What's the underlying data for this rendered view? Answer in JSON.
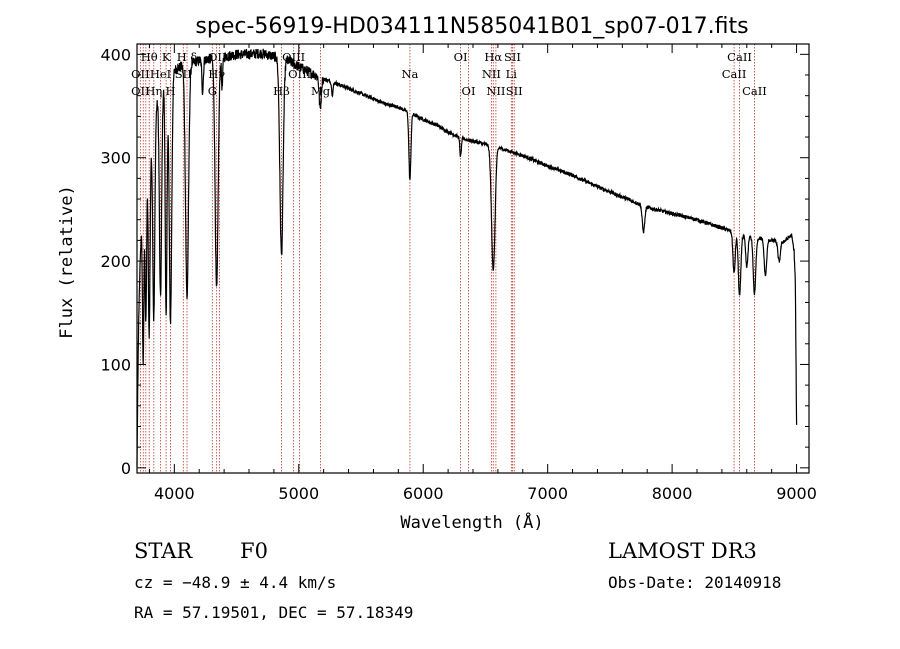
{
  "chart_data": {
    "type": "line",
    "title": "spec-56919-HD034111N585041B01_sp07-017.fits",
    "xlabel": "Wavelength (Å)",
    "ylabel": "Flux (relative)",
    "xlim": [
      3700,
      9100
    ],
    "ylim": [
      -5,
      410
    ],
    "xticks": [
      4000,
      5000,
      6000,
      7000,
      8000,
      9000
    ],
    "yticks": [
      0,
      100,
      200,
      300,
      400
    ],
    "grid": false,
    "series": [
      {
        "name": "flux",
        "continuum": [
          [
            3700,
            0
          ],
          [
            3705,
            60
          ],
          [
            3712,
            130
          ],
          [
            3725,
            200
          ],
          [
            3745,
            255
          ],
          [
            3770,
            290
          ],
          [
            3800,
            300
          ],
          [
            3830,
            330
          ],
          [
            3850,
            345
          ],
          [
            3870,
            360
          ],
          [
            3900,
            368
          ],
          [
            3950,
            378
          ],
          [
            4000,
            385
          ],
          [
            4050,
            388
          ],
          [
            4100,
            390
          ],
          [
            4200,
            394
          ],
          [
            4300,
            396
          ],
          [
            4400,
            398
          ],
          [
            4500,
            400
          ],
          [
            4600,
            400
          ],
          [
            4700,
            401
          ],
          [
            4800,
            398
          ],
          [
            4900,
            395
          ],
          [
            5000,
            388
          ],
          [
            5100,
            382
          ],
          [
            5200,
            376
          ],
          [
            5300,
            372
          ],
          [
            5400,
            367
          ],
          [
            5500,
            362
          ],
          [
            5600,
            357
          ],
          [
            5700,
            352
          ],
          [
            5800,
            349
          ],
          [
            5900,
            343
          ],
          [
            6000,
            337
          ],
          [
            6100,
            332
          ],
          [
            6200,
            325
          ],
          [
            6300,
            319
          ],
          [
            6400,
            316
          ],
          [
            6500,
            313
          ],
          [
            6600,
            310
          ],
          [
            6700,
            306
          ],
          [
            6800,
            302
          ],
          [
            6900,
            297
          ],
          [
            7000,
            292
          ],
          [
            7200,
            283
          ],
          [
            7400,
            272
          ],
          [
            7600,
            262
          ],
          [
            7800,
            252
          ],
          [
            8000,
            246
          ],
          [
            8200,
            240
          ],
          [
            8400,
            232
          ],
          [
            8500,
            228
          ],
          [
            8600,
            224
          ],
          [
            8700,
            222
          ],
          [
            8800,
            220
          ],
          [
            8900,
            219
          ],
          [
            8960,
            225
          ],
          [
            8980,
            210
          ],
          [
            8990,
            180
          ],
          [
            9000,
            40
          ]
        ],
        "absorption": [
          {
            "center": 3750,
            "depth": 160,
            "width": 6
          },
          {
            "center": 3771,
            "depth": 150,
            "width": 6
          },
          {
            "center": 3798,
            "depth": 170,
            "width": 7
          },
          {
            "center": 3835,
            "depth": 190,
            "width": 8
          },
          {
            "center": 3889,
            "depth": 200,
            "width": 9
          },
          {
            "center": 3934,
            "depth": 230,
            "width": 7
          },
          {
            "center": 3969,
            "depth": 240,
            "width": 10
          },
          {
            "center": 4102,
            "depth": 225,
            "width": 12
          },
          {
            "center": 4227,
            "depth": 30,
            "width": 6
          },
          {
            "center": 4340,
            "depth": 225,
            "width": 12
          },
          {
            "center": 4384,
            "depth": 30,
            "width": 5
          },
          {
            "center": 4861,
            "depth": 190,
            "width": 13
          },
          {
            "center": 5172,
            "depth": 30,
            "width": 8
          },
          {
            "center": 5270,
            "depth": 12,
            "width": 6
          },
          {
            "center": 5893,
            "depth": 65,
            "width": 8
          },
          {
            "center": 6300,
            "depth": 18,
            "width": 6
          },
          {
            "center": 6563,
            "depth": 120,
            "width": 14
          },
          {
            "center": 7770,
            "depth": 25,
            "width": 10
          },
          {
            "center": 8498,
            "depth": 40,
            "width": 9
          },
          {
            "center": 8542,
            "depth": 60,
            "width": 10
          },
          {
            "center": 8600,
            "depth": 30,
            "width": 9
          },
          {
            "center": 8662,
            "depth": 55,
            "width": 10
          },
          {
            "center": 8750,
            "depth": 35,
            "width": 10
          },
          {
            "center": 8860,
            "depth": 20,
            "width": 10
          }
        ]
      }
    ],
    "line_ids": [
      {
        "label": "Hθ",
        "wave": 3798,
        "row": 1
      },
      {
        "label": "K",
        "wave": 3934,
        "row": 1
      },
      {
        "label": "H δ",
        "wave": 4102,
        "row": 1
      },
      {
        "label": "OII",
        "wave": 3727,
        "row": 2
      },
      {
        "label": "HeI",
        "wave": 3889,
        "row": 2
      },
      {
        "label": "SII",
        "wave": 4072,
        "row": 2
      },
      {
        "label": "OIII",
        "wave": 4363,
        "row": 1
      },
      {
        "label": "OIII",
        "wave": 4959,
        "row": 1
      },
      {
        "label": "Hγ",
        "wave": 4340,
        "row": 2
      },
      {
        "label": "OIII",
        "wave": 5007,
        "row": 2
      },
      {
        "label": "OII",
        "wave": 3727,
        "row": 3
      },
      {
        "label": "Hη",
        "wave": 3835,
        "row": 3
      },
      {
        "label": "H",
        "wave": 3969,
        "row": 3
      },
      {
        "label": "G",
        "wave": 4305,
        "row": 3
      },
      {
        "label": "Hβ",
        "wave": 4861,
        "row": 3
      },
      {
        "label": "Mg",
        "wave": 5175,
        "row": 3
      },
      {
        "label": "Na",
        "wave": 5893,
        "row": 2
      },
      {
        "label": "OI",
        "wave": 6300,
        "row": 1
      },
      {
        "label": "OI",
        "wave": 6364,
        "row": 3
      },
      {
        "label": "Hα",
        "wave": 6563,
        "row": 1
      },
      {
        "label": "SII",
        "wave": 6717,
        "row": 1
      },
      {
        "label": "NII",
        "wave": 6548,
        "row": 2
      },
      {
        "label": "Li",
        "wave": 6708,
        "row": 2
      },
      {
        "label": "NII",
        "wave": 6584,
        "row": 3
      },
      {
        "label": "SII",
        "wave": 6731,
        "row": 3
      },
      {
        "label": "CaII",
        "wave": 8542,
        "row": 1
      },
      {
        "label": "CaII",
        "wave": 8498,
        "row": 2
      },
      {
        "label": "CaII",
        "wave": 8662,
        "row": 3
      }
    ],
    "marker_lines": [
      3727,
      3750,
      3771,
      3798,
      3835,
      3889,
      3934,
      3969,
      4072,
      4102,
      4305,
      4340,
      4363,
      4861,
      4959,
      5007,
      5175,
      5893,
      6300,
      6364,
      6548,
      6563,
      6584,
      6708,
      6717,
      6731,
      8498,
      8542,
      8662
    ]
  },
  "info": {
    "object_type": "STAR",
    "subclass": "F0",
    "survey": "LAMOST DR3",
    "cz": "cz = −48.9 ± 4.4 km/s",
    "obs_date": "Obs-Date: 20140918",
    "coords": "RA =  57.19501, DEC =  57.18349"
  },
  "colors": {
    "axis": "#000000",
    "spectrum": "#000000",
    "marker": "#c0392b"
  }
}
